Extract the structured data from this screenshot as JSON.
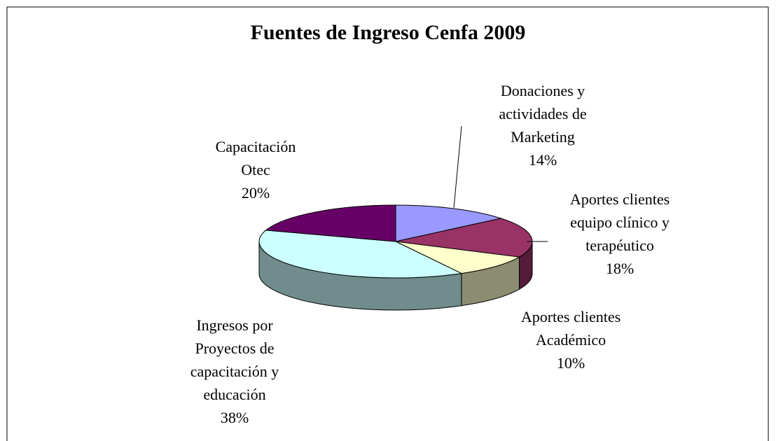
{
  "chart_data": {
    "type": "pie",
    "title": "Fuentes de Ingreso Cenfa 2009",
    "categories": [
      "Donaciones y\nactividades de\nMarketing",
      "Aportes clientes\nequipo clínico y\nterapéutico",
      "Aportes clientes\nAcadémico",
      "Ingresos por\nProyectos de\ncapacitación y\neducación",
      "Capacitación\nOtec"
    ],
    "values": [
      14,
      18,
      10,
      38,
      20
    ],
    "value_labels": [
      "14%",
      "18%",
      "10%",
      "38%",
      "20%"
    ],
    "colors": [
      "#9999ff",
      "#993366",
      "#ffffcc",
      "#ccffff",
      "#660066"
    ]
  }
}
